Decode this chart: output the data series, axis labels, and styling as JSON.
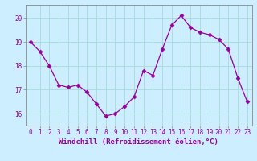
{
  "x": [
    0,
    1,
    2,
    3,
    4,
    5,
    6,
    7,
    8,
    9,
    10,
    11,
    12,
    13,
    14,
    15,
    16,
    17,
    18,
    19,
    20,
    21,
    22,
    23
  ],
  "y": [
    19.0,
    18.6,
    18.0,
    17.2,
    17.1,
    17.2,
    16.9,
    16.4,
    15.9,
    16.0,
    16.3,
    16.7,
    17.8,
    17.6,
    18.7,
    19.7,
    20.1,
    19.6,
    19.4,
    19.3,
    19.1,
    18.7,
    17.5,
    16.5
  ],
  "line_color": "#990099",
  "marker": "D",
  "marker_size": 2.5,
  "bg_color": "#cceeff",
  "grid_color": "#aadddd",
  "xlabel": "Windchill (Refroidissement éolien,°C)",
  "ylim": [
    15.5,
    20.55
  ],
  "xlim": [
    -0.5,
    23.5
  ],
  "yticks": [
    16,
    17,
    18,
    19,
    20
  ],
  "xticks": [
    0,
    1,
    2,
    3,
    4,
    5,
    6,
    7,
    8,
    9,
    10,
    11,
    12,
    13,
    14,
    15,
    16,
    17,
    18,
    19,
    20,
    21,
    22,
    23
  ],
  "xtick_labels": [
    "0",
    "1",
    "2",
    "3",
    "4",
    "5",
    "6",
    "7",
    "8",
    "9",
    "10",
    "11",
    "12",
    "13",
    "14",
    "15",
    "16",
    "17",
    "18",
    "19",
    "20",
    "21",
    "22",
    "23"
  ],
  "tick_color": "#990099",
  "label_color": "#990099",
  "spine_color": "#888888",
  "font_size_tick": 5.5,
  "font_size_xlabel": 6.5
}
